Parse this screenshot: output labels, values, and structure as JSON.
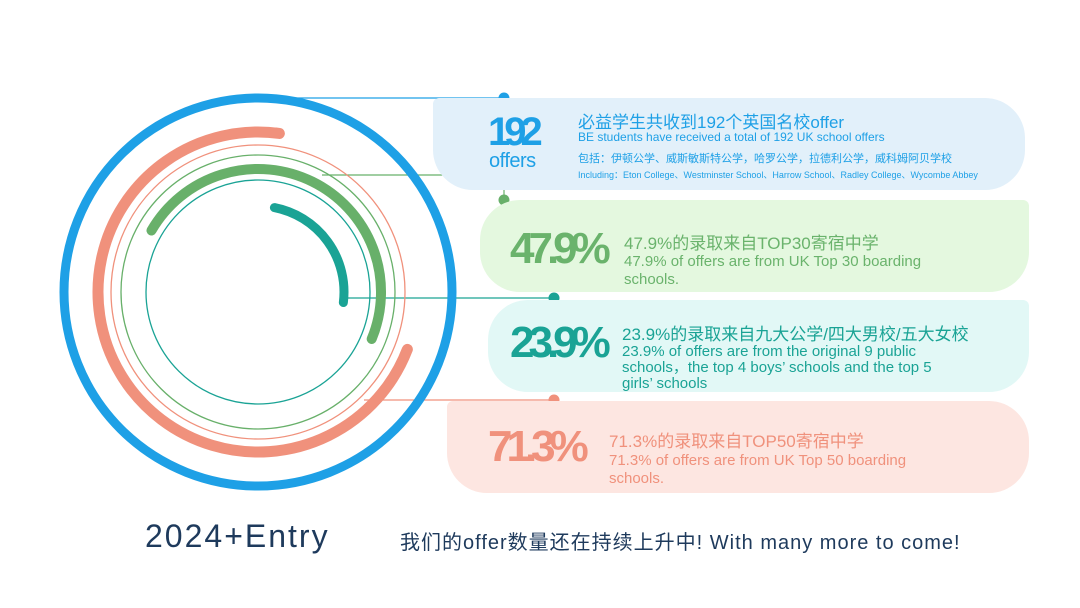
{
  "colors": {
    "blue": "#1ea0e6",
    "salmon": "#f0917c",
    "green": "#68b06a",
    "teal": "#1aa395",
    "dark_navy": "#1e3a5c"
  },
  "chart_data": {
    "type": "radial-bar",
    "unit": "%",
    "series": [
      {
        "big": "192",
        "big_sub": "offers",
        "value": 100
      },
      {
        "big": "47.9%",
        "value": 47.9
      },
      {
        "big": "23.9%",
        "value": 23.9
      },
      {
        "big": "71.3%",
        "value": 71.3
      }
    ]
  },
  "cards": [
    {
      "title_cn": "必益学生共收到192个英国名校offer",
      "title_en": "BE students have received a total of 192 UK school offers",
      "including_cn": "包括：伊顿公学、威斯敏斯特公学，哈罗公学，拉德利公学，威科姆阿贝学校",
      "including_en": "Including：Eton College、Westminster School、Harrow School、Radley College、Wycombe Abbey"
    },
    {
      "cn": "47.9%的录取来自TOP30寄宿中学",
      "en_lines": [
        "47.9% of offers are from UK Top 30 boarding",
        "schools."
      ]
    },
    {
      "cn": "23.9%的录取来自九大公学/四大男校/五大女校",
      "en_lines": [
        "23.9% of offers are from the original 9 public",
        "schools，the top 4 boys’ schools and the top 5",
        "girls’ schools"
      ]
    },
    {
      "cn": "71.3%的录取来自TOP50寄宿中学",
      "en_lines": [
        "71.3% of offers are from UK Top 50 boarding",
        "schools."
      ]
    }
  ],
  "footer": {
    "entry": "2024+Entry",
    "tagline": "我们的offer数量还在持续上升中! With many more to come!"
  }
}
